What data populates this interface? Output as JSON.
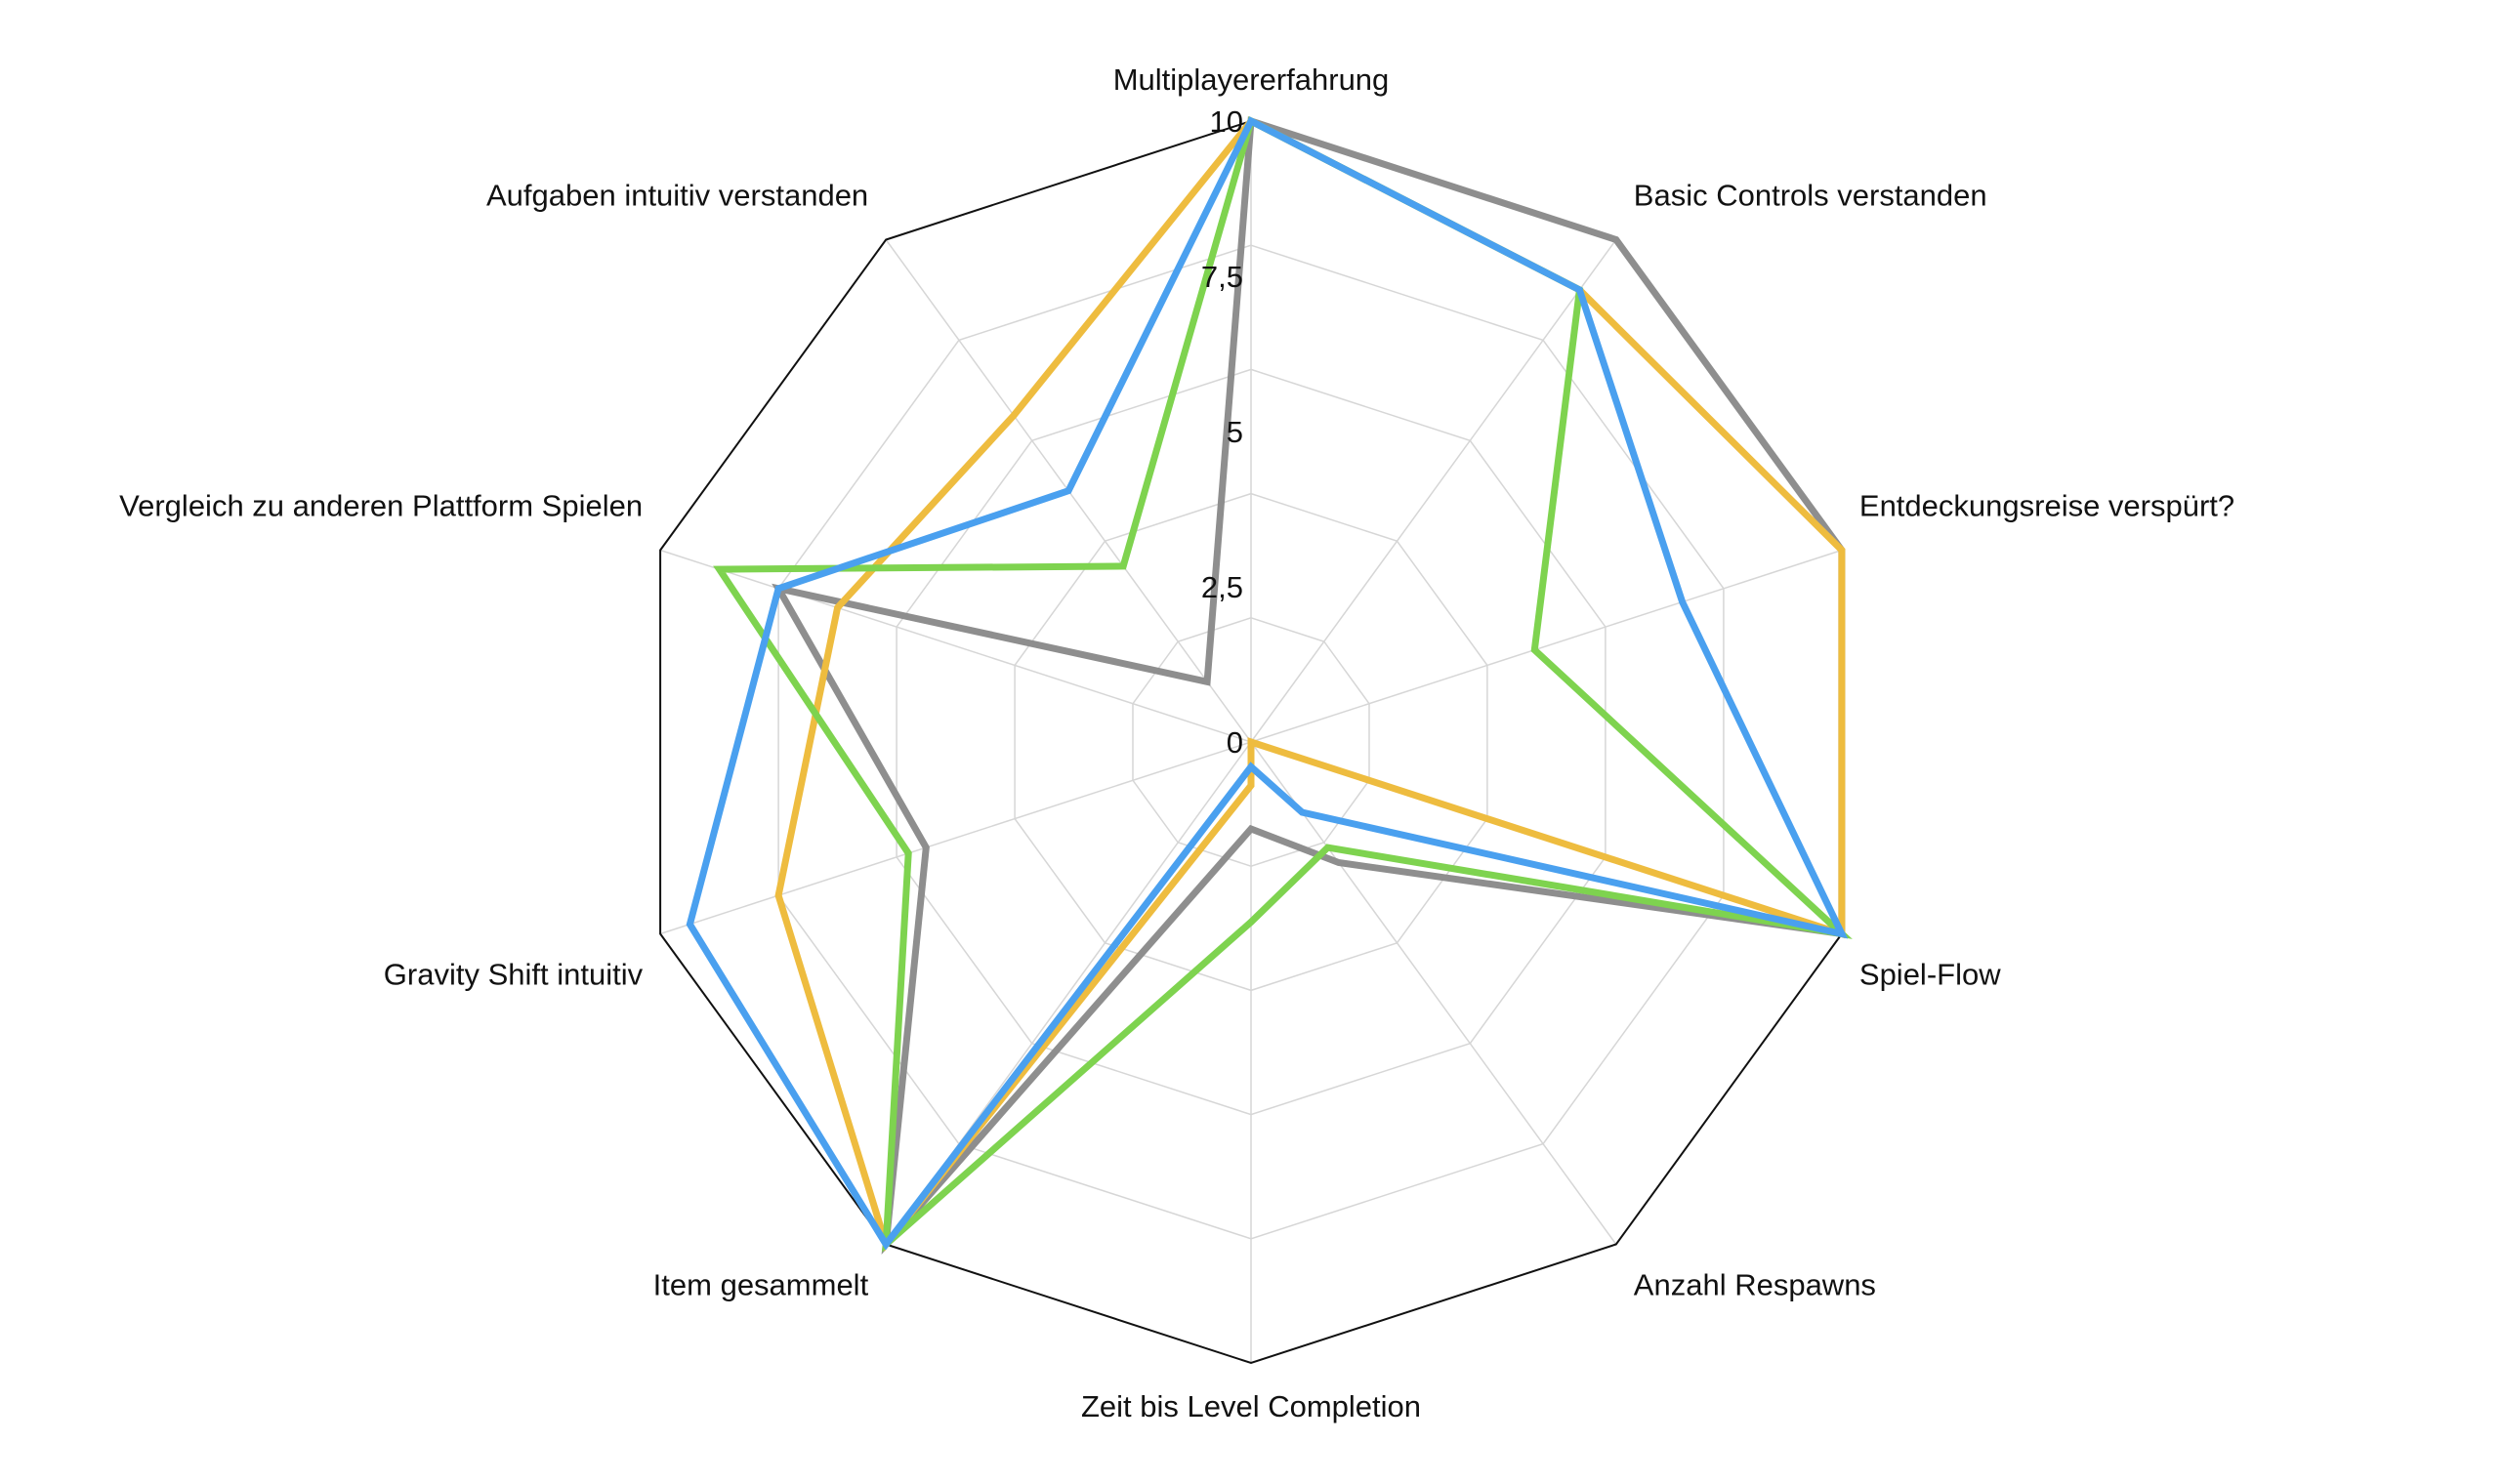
{
  "chart_data": {
    "type": "radar",
    "categories": [
      "Multiplayererfahrung",
      "Basic Controls verstanden",
      "Entdeckungsreise verspürt?",
      "Spiel-Flow",
      "Anzahl Respawns",
      "Zeit bis Level Completion",
      "Item gesammelt",
      "Gravity Shift intuitiv",
      "Vergleich zu anderen Plattform Spielen",
      "Aufgaben intuitiv verstanden"
    ],
    "r_ticks": [
      0,
      2.5,
      5,
      7.5,
      10
    ],
    "r_tick_labels": [
      "0",
      "2,5",
      "5",
      "7,5",
      "10"
    ],
    "rlim": [
      0,
      10
    ],
    "grid": true,
    "legend": "none",
    "series": [
      {
        "color": "#8e8e8e",
        "values": [
          10,
          10,
          10,
          10,
          2.4,
          1.4,
          10,
          5.5,
          8,
          1.2
        ]
      },
      {
        "color": "#eebc3f",
        "values": [
          10,
          9,
          10,
          10,
          0,
          0.7,
          10,
          8,
          7,
          6.5
        ]
      },
      {
        "color": "#7ed34f",
        "values": [
          10,
          9,
          4.8,
          10,
          2.1,
          2.9,
          10,
          5.8,
          9,
          3.5
        ]
      },
      {
        "color": "#4aa0ef",
        "values": [
          10,
          9,
          7.3,
          10,
          1.4,
          0.4,
          10,
          9.5,
          8,
          5
        ]
      }
    ]
  }
}
